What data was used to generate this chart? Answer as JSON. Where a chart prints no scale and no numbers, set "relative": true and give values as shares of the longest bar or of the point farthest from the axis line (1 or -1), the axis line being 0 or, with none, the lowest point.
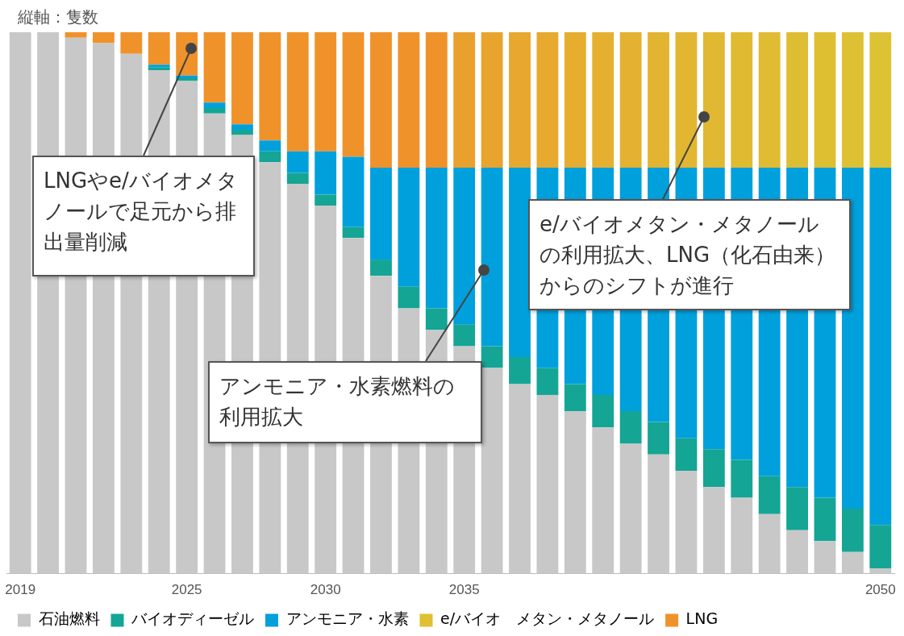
{
  "chart_data": {
    "type": "bar",
    "stacked": true,
    "relative": true,
    "ylabel": "縦軸：隻数",
    "legend": "bottom",
    "categories": [
      "2019",
      null,
      null,
      null,
      null,
      null,
      "2025",
      null,
      null,
      null,
      null,
      "2030",
      null,
      null,
      null,
      null,
      "2035",
      null,
      null,
      null,
      null,
      null,
      null,
      null,
      null,
      null,
      null,
      null,
      null,
      null,
      null,
      "2050"
    ],
    "series": [
      {
        "name": "石油燃料",
        "color": "#c8c8c8",
        "values": [
          1,
          1,
          0.99,
          0.98,
          0.96,
          0.93,
          0.91,
          0.85,
          0.81,
          0.76,
          0.72,
          0.68,
          0.62,
          0.55,
          0.49,
          0.45,
          0.42,
          0.38,
          0.35,
          0.33,
          0.3,
          0.27,
          0.24,
          0.22,
          0.19,
          0.16,
          0.14,
          0.11,
          0.08,
          0.06,
          0.04,
          0.01
        ]
      },
      {
        "name": "バイオディーゼル",
        "color": "#14a595",
        "values": [
          0,
          0,
          0,
          0,
          0,
          0.005,
          0.005,
          0.01,
          0.01,
          0.02,
          0.02,
          0.02,
          0.02,
          0.03,
          0.04,
          0.04,
          0.04,
          0.04,
          0.05,
          0.05,
          0.05,
          0.06,
          0.06,
          0.06,
          0.06,
          0.07,
          0.07,
          0.07,
          0.08,
          0.08,
          0.08,
          0.08
        ]
      },
      {
        "name": "アンモニア・水素",
        "color": "#00a0dc",
        "values": [
          0,
          0,
          0,
          0,
          0,
          0.005,
          0.005,
          0.01,
          0.01,
          0.02,
          0.04,
          0.08,
          0.13,
          0.17,
          0.22,
          0.26,
          0.29,
          0.33,
          0.35,
          0.37,
          0.4,
          0.42,
          0.45,
          0.47,
          0.5,
          0.52,
          0.54,
          0.57,
          0.59,
          0.61,
          0.63,
          0.66
        ]
      },
      {
        "name": "e/バイオ　メタン・メタノール",
        "color": "#e0bf30",
        "colors": [
          "#e0bf30",
          "#e0bf30",
          "#e0bf30",
          "#e0bf30",
          "#e0bf30",
          "#e0bf30",
          "#e0bf30",
          "#e0bf30",
          "#e0bf30",
          "#e0bf30",
          "#e0bf30",
          "#e0bf30",
          "#e0bf30",
          "#e0bf30",
          "#e0bf30",
          "#e0bf30",
          "#eaa02c",
          "#e9a42d",
          "#e8a72e",
          "#e7aa2e",
          "#e6ad2f",
          "#e5b02f",
          "#e4b230",
          "#e3b430",
          "#e2b631",
          "#e1b831",
          "#e0ba31",
          "#dfbc32",
          "#dfbd32",
          "#debf32",
          "#dec033",
          "#ddc233"
        ],
        "values": [
          0,
          0,
          0,
          0,
          0,
          0,
          0,
          0,
          0,
          0,
          0,
          0,
          0,
          0,
          0,
          0,
          0.25,
          0.25,
          0.25,
          0.25,
          0.25,
          0.25,
          0.25,
          0.25,
          0.25,
          0.25,
          0.25,
          0.25,
          0.25,
          0.25,
          0.25,
          0.25
        ]
      },
      {
        "name": "LNG",
        "color": "#f0922a",
        "values": [
          0,
          0,
          0.01,
          0.02,
          0.04,
          0.06,
          0.08,
          0.13,
          0.17,
          0.2,
          0.22,
          0.22,
          0.23,
          0.25,
          0.25,
          0.25,
          0,
          0,
          0,
          0,
          0,
          0,
          0,
          0,
          0,
          0,
          0,
          0,
          0,
          0,
          0,
          0
        ]
      }
    ],
    "annotations": [
      "LNGやe/バイオメタノールで足元から排出量削減",
      "アンモニア・水素燃料の利用拡大",
      "e/バイオメタン・メタノールの利用拡大、LNG（化石由来）からのシフトが進行"
    ]
  }
}
